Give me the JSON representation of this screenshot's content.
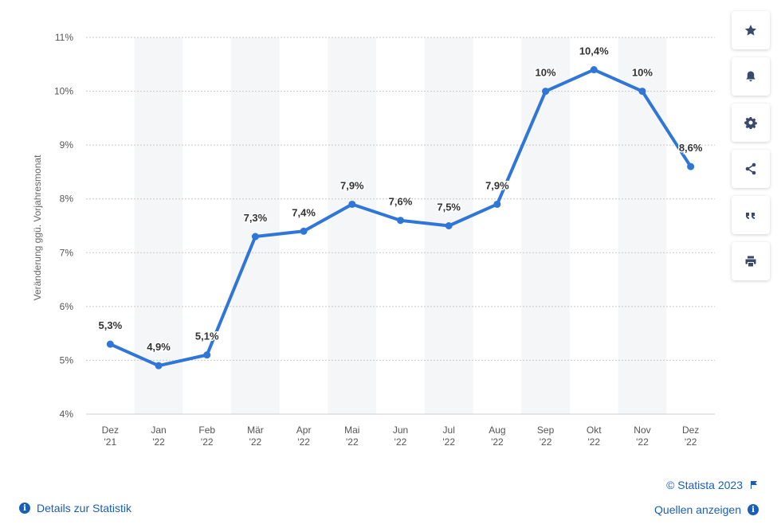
{
  "chart_data": {
    "type": "line",
    "categories": [
      [
        "Dez",
        "'21"
      ],
      [
        "Jan",
        "'22"
      ],
      [
        "Feb",
        "'22"
      ],
      [
        "Mär",
        "'22"
      ],
      [
        "Apr",
        "'22"
      ],
      [
        "Mai",
        "'22"
      ],
      [
        "Jun",
        "'22"
      ],
      [
        "Jul",
        "'22"
      ],
      [
        "Aug",
        "'22"
      ],
      [
        "Sep",
        "'22"
      ],
      [
        "Okt",
        "'22"
      ],
      [
        "Nov",
        "'22"
      ],
      [
        "Dez",
        "'22"
      ]
    ],
    "series": [
      {
        "values": [
          5.3,
          4.9,
          5.1,
          7.3,
          7.4,
          7.9,
          7.6,
          7.5,
          7.9,
          10.0,
          10.4,
          10.0,
          8.6
        ],
        "labels": [
          "5,3%",
          "4,9%",
          "5,1%",
          "7,3%",
          "7,4%",
          "7,9%",
          "7,6%",
          "7,5%",
          "7,9%",
          "10%",
          "10,4%",
          "10%",
          "8,6%"
        ]
      }
    ],
    "ylabel": "Veränderung ggü. Vorjahresmonat",
    "ylim": [
      4,
      11
    ],
    "yticks": [
      4,
      5,
      6,
      7,
      8,
      9,
      10,
      11
    ],
    "ytick_labels": [
      "4%",
      "5%",
      "6%",
      "7%",
      "8%",
      "9%",
      "10%",
      "11%"
    ],
    "grid": true,
    "alternating_column_shading": true,
    "line_color": "#2f76d8",
    "shade_color": "#f5f6f7"
  },
  "toolbar": {
    "buttons": [
      {
        "name": "favorite-button",
        "icon": "star-icon"
      },
      {
        "name": "notification-button",
        "icon": "bell-icon"
      },
      {
        "name": "settings-button",
        "icon": "gear-icon"
      },
      {
        "name": "share-button",
        "icon": "share-icon"
      },
      {
        "name": "cite-button",
        "icon": "quote-icon"
      },
      {
        "name": "print-button",
        "icon": "printer-icon"
      }
    ]
  },
  "footer": {
    "copyright": "© Statista 2023",
    "details_link": "Details zur Statistik",
    "sources_link": "Quellen anzeigen",
    "link_color": "#1a5fb4"
  }
}
